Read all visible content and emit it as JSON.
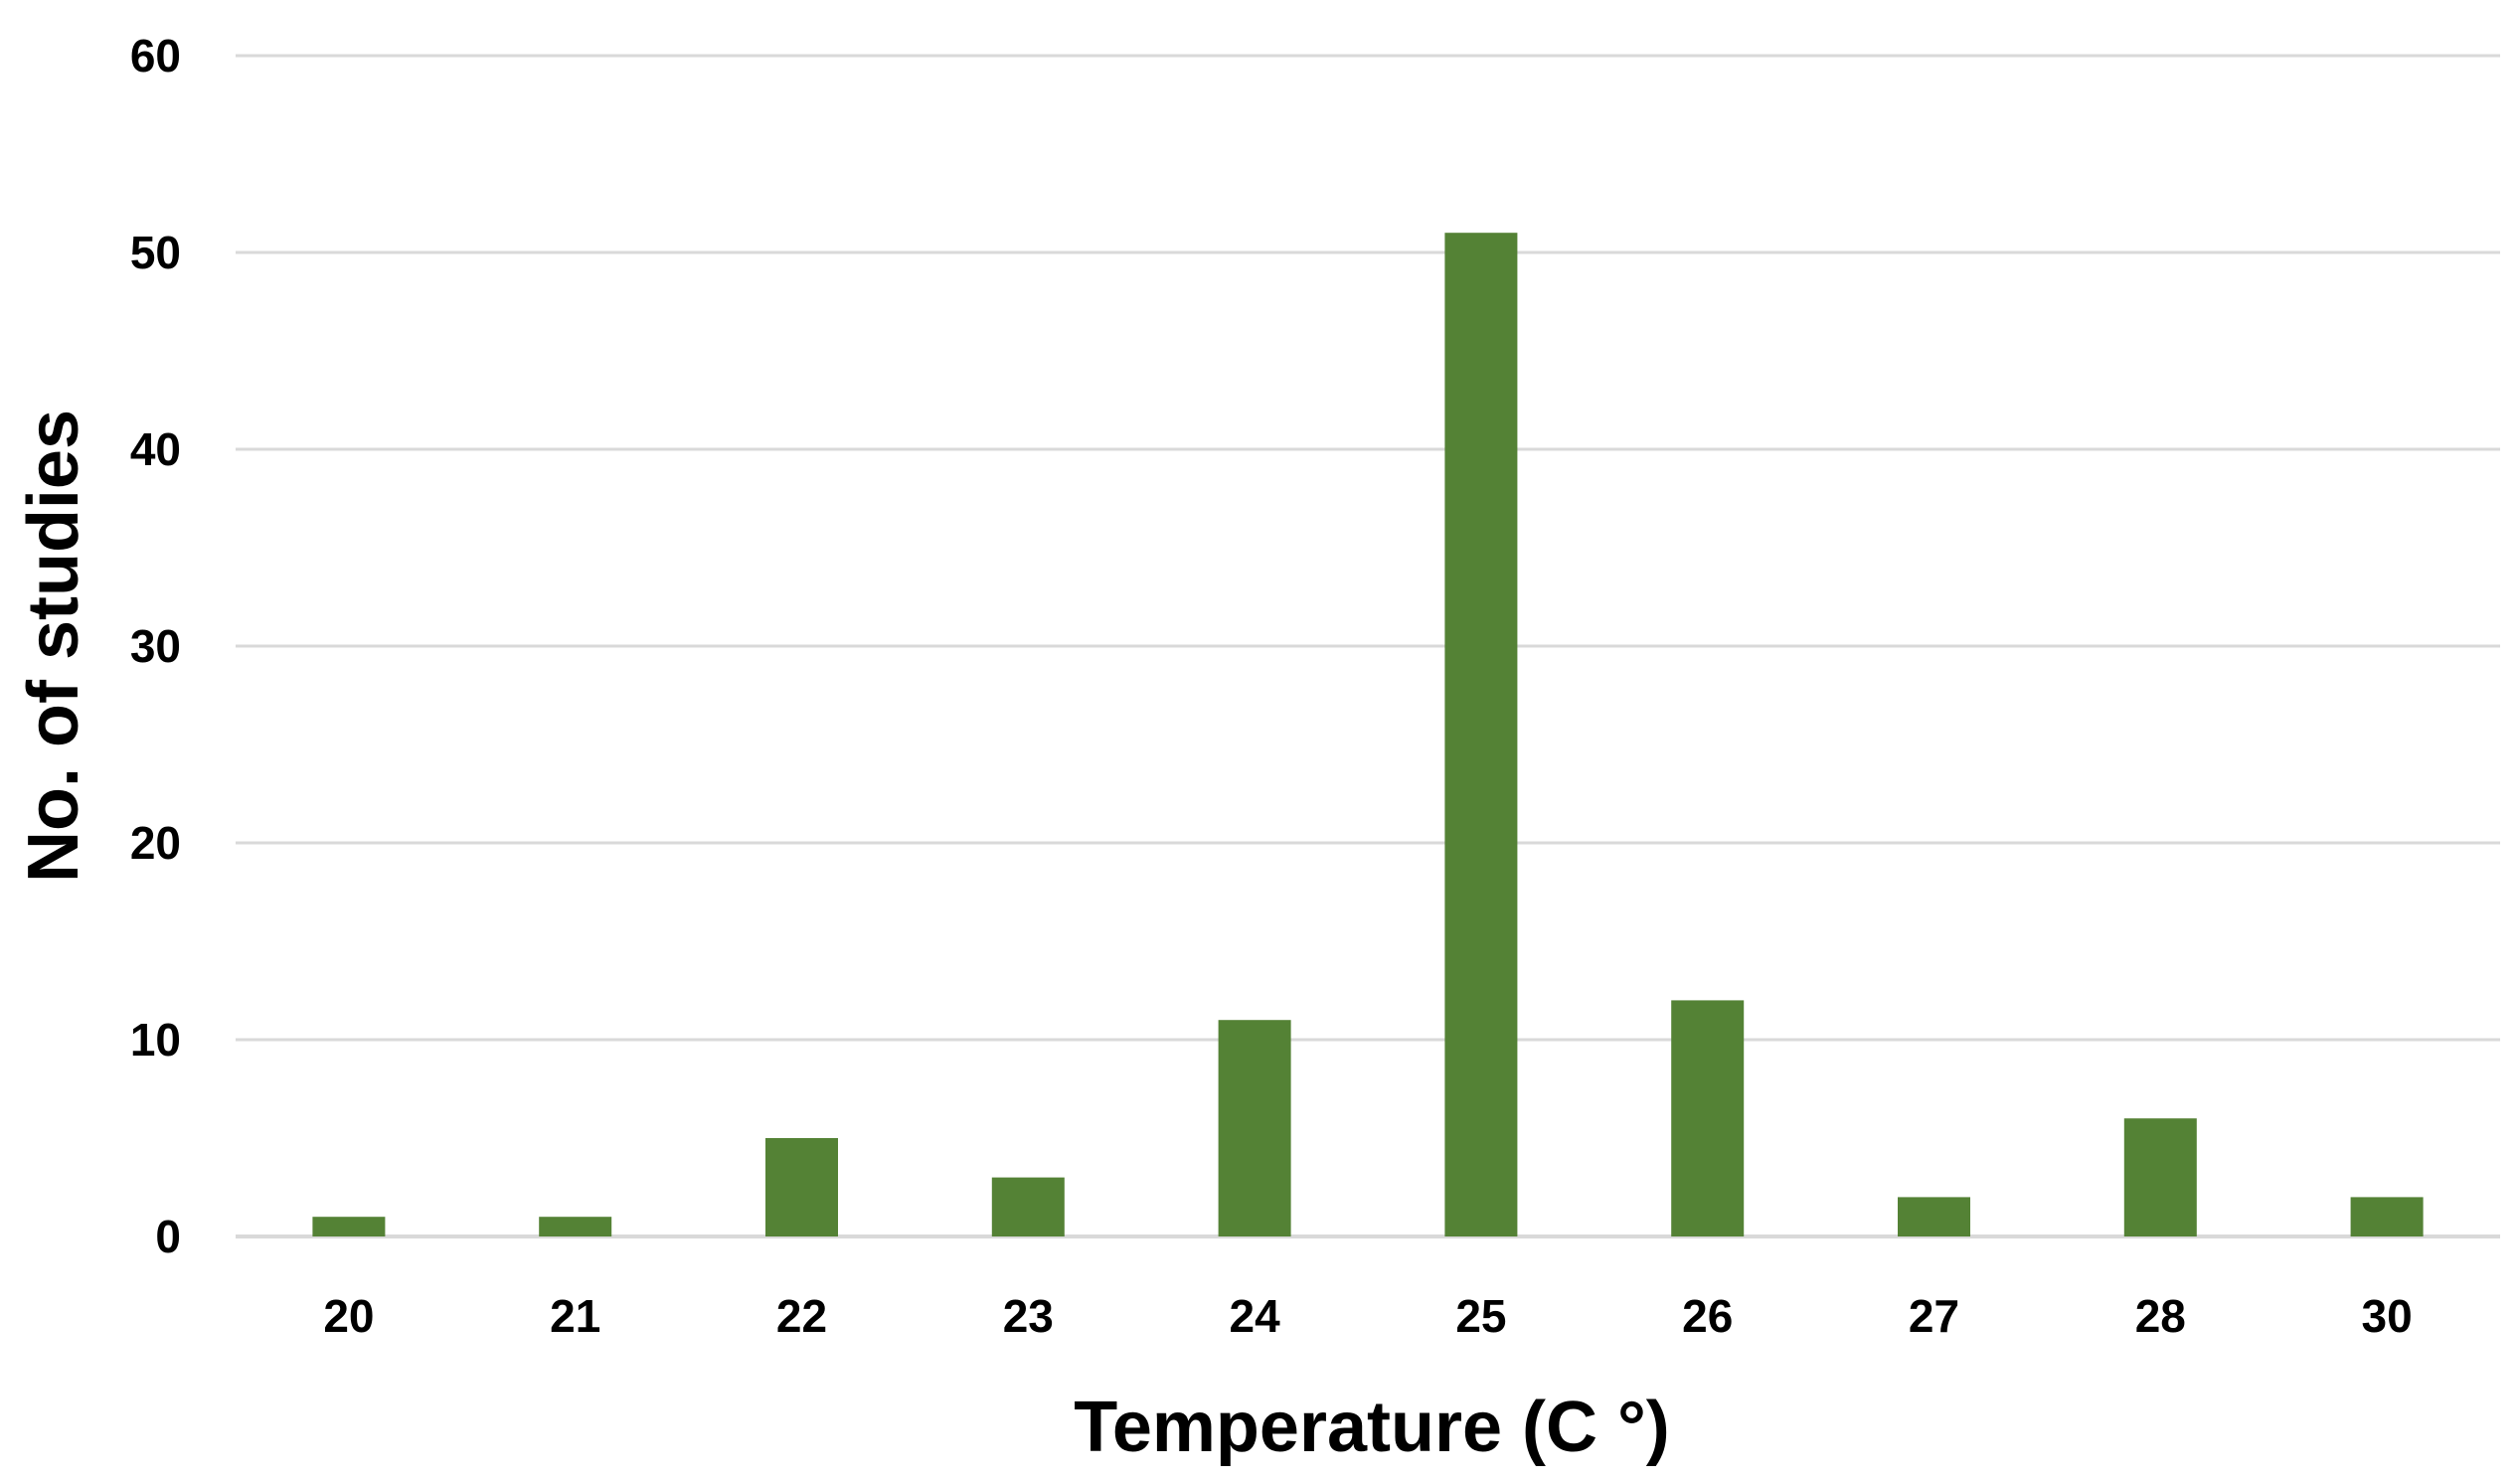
{
  "chart_data": {
    "type": "bar",
    "title": "",
    "xlabel": "Temperature (C °)",
    "ylabel": "No. of studies",
    "categories": [
      "20",
      "21",
      "22",
      "23",
      "24",
      "25",
      "26",
      "27",
      "28",
      "30"
    ],
    "values": [
      1,
      1,
      5,
      3,
      11,
      51,
      12,
      2,
      6,
      2
    ],
    "ylim": [
      0,
      60
    ],
    "yticks": [
      0,
      10,
      20,
      30,
      40,
      50,
      60
    ],
    "grid": true,
    "legend": "none",
    "bar_color": "#548235",
    "grid_color": "#d9d9d9"
  }
}
